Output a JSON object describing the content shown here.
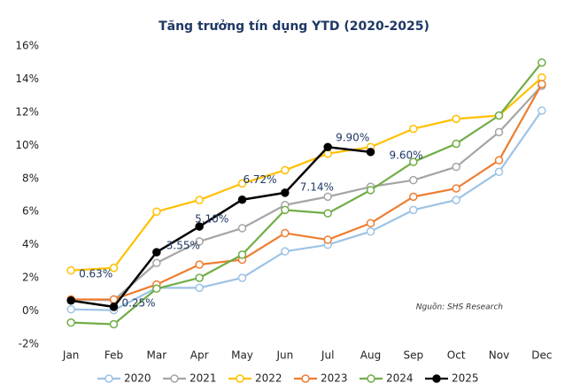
{
  "chart_data": {
    "type": "line",
    "title": "Tăng trưởng tín dụng YTD (2020-2025)",
    "annotation": "Nguồn: SHS Research",
    "categories": [
      "Jan",
      "Feb",
      "Mar",
      "Apr",
      "May",
      "Jun",
      "Jul",
      "Aug",
      "Sep",
      "Oct",
      "Nov",
      "Dec"
    ],
    "series": [
      {
        "name": "2020",
        "color": "#9dc3e6",
        "values": [
          0.1,
          0.05,
          1.4,
          1.4,
          2.0,
          3.6,
          4.0,
          4.8,
          6.1,
          6.7,
          8.4,
          12.1
        ]
      },
      {
        "name": "2021",
        "color": "#a5a5a5",
        "values": [
          0.7,
          0.65,
          2.9,
          4.2,
          5.0,
          6.4,
          6.9,
          7.5,
          7.9,
          8.7,
          10.8,
          13.6
        ]
      },
      {
        "name": "2022",
        "color": "#ffc000",
        "values": [
          2.45,
          2.6,
          6.0,
          6.7,
          7.7,
          8.5,
          9.5,
          9.9,
          11.0,
          11.6,
          11.8,
          14.1
        ]
      },
      {
        "name": "2023",
        "color": "#ed7d31",
        "values": [
          0.7,
          0.7,
          1.6,
          2.8,
          3.1,
          4.7,
          4.3,
          5.3,
          6.9,
          7.4,
          9.1,
          13.7
        ]
      },
      {
        "name": "2024",
        "color": "#70ad47",
        "values": [
          -0.7,
          -0.8,
          1.35,
          2.0,
          3.4,
          6.1,
          5.9,
          7.3,
          9.0,
          10.1,
          11.8,
          15.0
        ]
      },
      {
        "name": "2025",
        "color": "#000000",
        "values": [
          0.63,
          0.25,
          3.55,
          5.1,
          6.72,
          7.14,
          9.9,
          9.6,
          null,
          null,
          null,
          null
        ],
        "value_labels": [
          "0.63%",
          "0.25%",
          "3.55%",
          "5.10%",
          "6.72%",
          "7.14%",
          "9.90%",
          "9.60%",
          null,
          null,
          null,
          null
        ]
      }
    ],
    "ylim": [
      -2,
      16
    ],
    "yticks": [
      {
        "value": -2,
        "label": "-2%"
      },
      {
        "value": 0,
        "label": "0%"
      },
      {
        "value": 2,
        "label": "2%"
      },
      {
        "value": 4,
        "label": "4%"
      },
      {
        "value": 6,
        "label": "6%"
      },
      {
        "value": 8,
        "label": "8%"
      },
      {
        "value": 10,
        "label": "10%"
      },
      {
        "value": 12,
        "label": "12%"
      },
      {
        "value": 14,
        "label": "14%"
      },
      {
        "value": 16,
        "label": "16%"
      }
    ],
    "legend": "bottom"
  }
}
